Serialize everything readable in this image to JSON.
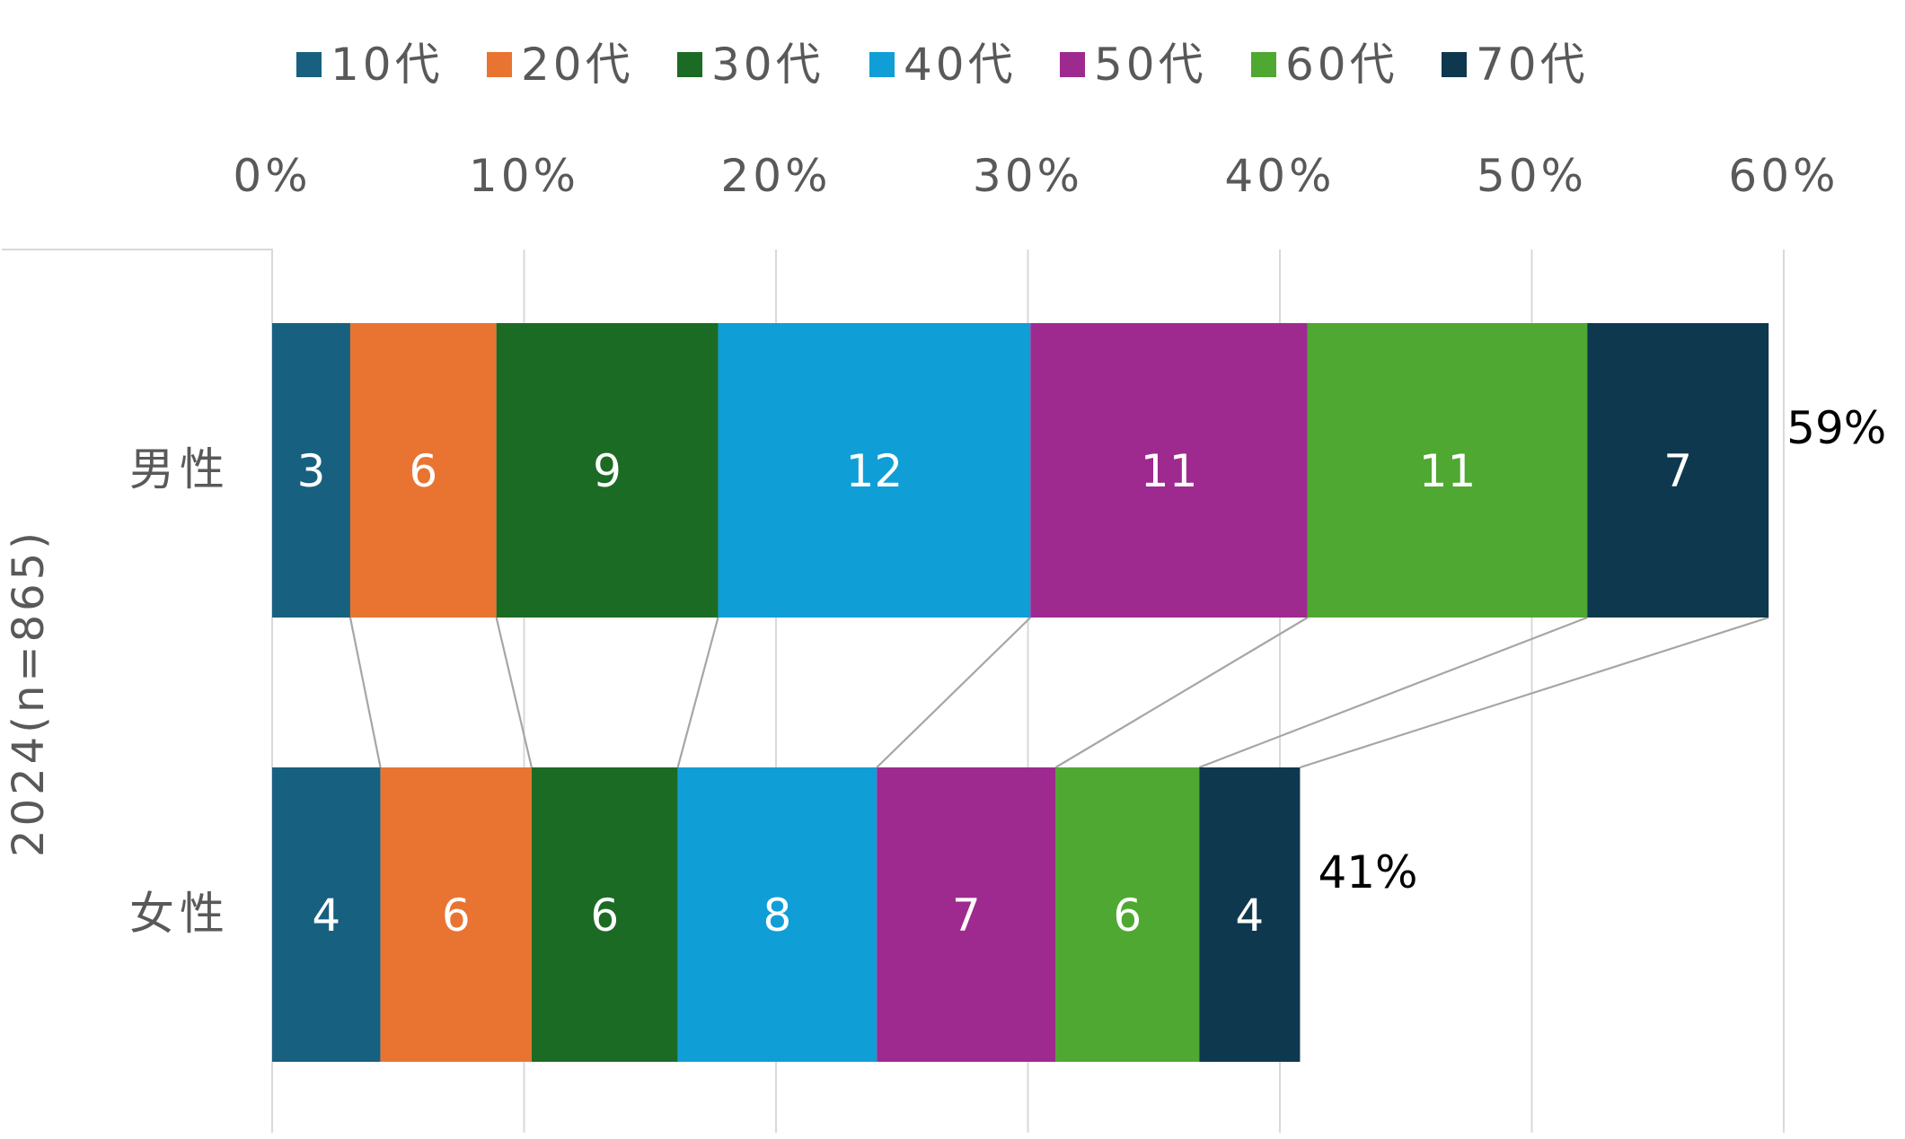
{
  "chart_data": {
    "type": "bar",
    "orientation": "horizontal",
    "stacked": true,
    "unit": "%",
    "group_label": "2024(n=865)",
    "categories": [
      "男性",
      "女性"
    ],
    "series": [
      {
        "name": "10代",
        "color": "#17607f",
        "values": [
          3.1,
          4.3
        ]
      },
      {
        "name": "20代",
        "color": "#e97432",
        "values": [
          5.8,
          6.0
        ]
      },
      {
        "name": "30代",
        "color": "#1b6b24",
        "values": [
          8.8,
          5.8
        ]
      },
      {
        "name": "40代",
        "color": "#109ed6",
        "values": [
          12.4,
          7.9
        ]
      },
      {
        "name": "50代",
        "color": "#9e2a8f",
        "values": [
          11.0,
          7.1
        ]
      },
      {
        "name": "60代",
        "color": "#4fa831",
        "values": [
          11.1,
          5.7
        ]
      },
      {
        "name": "70代",
        "color": "#0e384e",
        "values": [
          7.2,
          4.0
        ]
      }
    ],
    "data_labels": [
      [
        "3",
        "6",
        "9",
        "12",
        "11",
        "11",
        "7"
      ],
      [
        "4",
        "6",
        "6",
        "8",
        "7",
        "6",
        "4"
      ]
    ],
    "totals": [
      "59%",
      "41%"
    ],
    "x_ticks": [
      "0%",
      "10%",
      "20%",
      "30%",
      "40%",
      "50%",
      "60%"
    ],
    "xlim": [
      0,
      60
    ],
    "grid": true,
    "series_lines": true,
    "legend_position": "top"
  }
}
